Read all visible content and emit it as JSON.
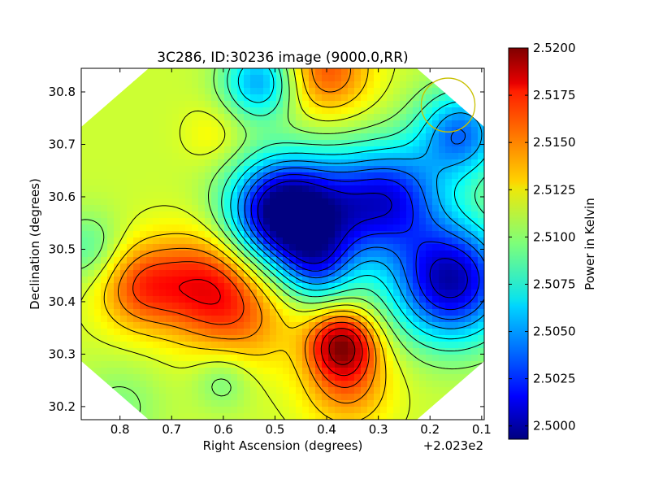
{
  "chart_data": {
    "type": "heatmap",
    "title": "3C286, ID:30236 image (9000.0,RR)",
    "xlabel": "Right Ascension (degrees)",
    "ylabel": "Declination (degrees)",
    "xlim": [
      0.875,
      0.095
    ],
    "ylim": [
      30.175,
      30.845
    ],
    "x_offset_label": "+2.023e2",
    "xticks": [
      {
        "value": 0.8,
        "label": "0.8"
      },
      {
        "value": 0.7,
        "label": "0.7"
      },
      {
        "value": 0.6,
        "label": "0.6"
      },
      {
        "value": 0.5,
        "label": "0.5"
      },
      {
        "value": 0.4,
        "label": "0.4"
      },
      {
        "value": 0.3,
        "label": "0.3"
      },
      {
        "value": 0.2,
        "label": "0.2"
      },
      {
        "value": 0.1,
        "label": "0.1"
      }
    ],
    "yticks": [
      {
        "value": 30.2,
        "label": "30.2"
      },
      {
        "value": 30.3,
        "label": "30.3"
      },
      {
        "value": 30.4,
        "label": "30.4"
      },
      {
        "value": 30.5,
        "label": "30.5"
      },
      {
        "value": 30.6,
        "label": "30.6"
      },
      {
        "value": 30.7,
        "label": "30.7"
      },
      {
        "value": 30.8,
        "label": "30.8"
      }
    ],
    "colorbar": {
      "label": "Power in Kelvin",
      "min": 2.4993,
      "max": 2.52,
      "colormap": "jet",
      "ticks": [
        {
          "value": 2.5,
          "label": "2.5000"
        },
        {
          "value": 2.5025,
          "label": "2.5025"
        },
        {
          "value": 2.505,
          "label": "2.5050"
        },
        {
          "value": 2.5075,
          "label": "2.5075"
        },
        {
          "value": 2.51,
          "label": "2.5100"
        },
        {
          "value": 2.5125,
          "label": "2.5125"
        },
        {
          "value": 2.515,
          "label": "2.5150"
        },
        {
          "value": 2.5175,
          "label": "2.5175"
        },
        {
          "value": 2.52,
          "label": "2.5200"
        }
      ]
    },
    "base_level": 2.5112,
    "features": [
      {
        "ra": 0.37,
        "dec": 30.32,
        "amp": 0.0075,
        "width": 0.045,
        "kind": "max"
      },
      {
        "ra": 0.36,
        "dec": 30.24,
        "amp": 0.0035,
        "width": 0.06,
        "kind": "max"
      },
      {
        "ra": 0.63,
        "dec": 30.43,
        "amp": 0.0055,
        "width": 0.07,
        "kind": "max"
      },
      {
        "ra": 0.76,
        "dec": 30.43,
        "amp": 0.0045,
        "width": 0.06,
        "kind": "max"
      },
      {
        "ra": 0.55,
        "dec": 30.36,
        "amp": 0.0025,
        "width": 0.07,
        "kind": "max"
      },
      {
        "ra": 0.4,
        "dec": 30.84,
        "amp": 0.0045,
        "width": 0.06,
        "kind": "max"
      },
      {
        "ra": 0.62,
        "dec": 30.72,
        "amp": 0.0012,
        "width": 0.04,
        "kind": "max"
      },
      {
        "ra": 0.49,
        "dec": 30.57,
        "amp": -0.0115,
        "width": 0.07,
        "kind": "min"
      },
      {
        "ra": 0.38,
        "dec": 30.57,
        "amp": -0.006,
        "width": 0.08,
        "kind": "min"
      },
      {
        "ra": 0.27,
        "dec": 30.6,
        "amp": -0.007,
        "width": 0.07,
        "kind": "min"
      },
      {
        "ra": 0.16,
        "dec": 30.44,
        "amp": -0.011,
        "width": 0.08,
        "kind": "min"
      },
      {
        "ra": 0.14,
        "dec": 30.72,
        "amp": -0.007,
        "width": 0.06,
        "kind": "min"
      },
      {
        "ra": 0.53,
        "dec": 30.82,
        "amp": -0.006,
        "width": 0.05,
        "kind": "min"
      },
      {
        "ra": 0.42,
        "dec": 30.47,
        "amp": -0.005,
        "width": 0.05,
        "kind": "min"
      },
      {
        "ra": 0.86,
        "dec": 30.5,
        "amp": -0.0025,
        "width": 0.05,
        "kind": "min"
      },
      {
        "ra": 0.6,
        "dec": 30.25,
        "amp": -0.002,
        "width": 0.04,
        "kind": "min"
      },
      {
        "ra": 0.8,
        "dec": 30.2,
        "amp": -0.0015,
        "width": 0.06,
        "kind": "min"
      }
    ],
    "contour_levels": [
      2.501,
      2.5025,
      2.504,
      2.5055,
      2.507,
      2.5085,
      2.51,
      2.5115,
      2.513,
      2.5145,
      2.516,
      2.5175,
      2.519
    ],
    "beam_circle": {
      "ra": 0.165,
      "dec": 30.775,
      "radius_deg": 0.052,
      "color": "#c8c000"
    },
    "grid": false,
    "legend": "none"
  }
}
